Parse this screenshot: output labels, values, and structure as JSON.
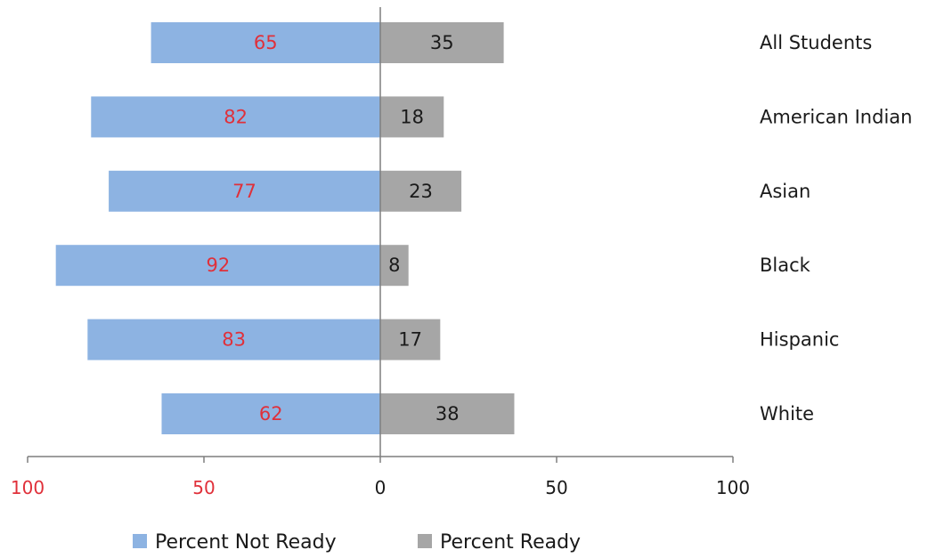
{
  "chart_data": {
    "type": "bar",
    "orientation": "horizontal-diverging",
    "categories": [
      "All Students",
      "American Indian",
      "Asian",
      "Black",
      "Hispanic",
      "White"
    ],
    "series": [
      {
        "name": "Percent Not Ready",
        "values": [
          65,
          82,
          77,
          92,
          83,
          62
        ],
        "color": "#8db3e2",
        "label_color": "#e0303a",
        "direction": "left"
      },
      {
        "name": "Percent Ready",
        "values": [
          35,
          18,
          23,
          8,
          17,
          38
        ],
        "color": "#a6a6a6",
        "label_color": "#1a1a1a",
        "direction": "right"
      }
    ],
    "xlim": [
      -100,
      100
    ],
    "x_ticks": [
      {
        "value": -100,
        "label": "100",
        "color": "#e0303a"
      },
      {
        "value": -50,
        "label": "50",
        "color": "#e0303a"
      },
      {
        "value": 0,
        "label": "0",
        "color": "#1a1a1a"
      },
      {
        "value": 50,
        "label": "50",
        "color": "#1a1a1a"
      },
      {
        "value": 100,
        "label": "100",
        "color": "#1a1a1a"
      }
    ],
    "title": "",
    "xlabel": "",
    "ylabel": "",
    "grid": false,
    "legend_position": "bottom"
  }
}
